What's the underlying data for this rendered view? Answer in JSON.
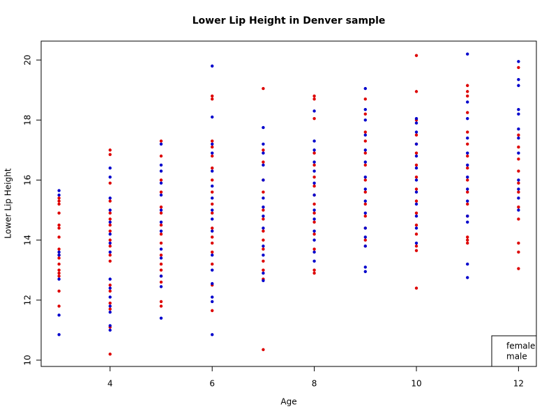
{
  "chart_data": {
    "type": "scatter",
    "title": "Lower Lip Height in Denver sample",
    "x_label": "Age",
    "y_label": "Lower Lip Height",
    "xlim": [
      2.65,
      12.35
    ],
    "ylim": [
      9.79,
      20.63
    ],
    "xticks": [
      4,
      6,
      8,
      10,
      12
    ],
    "yticks": [
      10,
      12,
      14,
      16,
      18,
      20
    ],
    "grid": false,
    "legend": "bottomright",
    "series": [
      {
        "name": "female",
        "color": "#dd0000",
        "x": [
          3,
          3,
          3,
          3,
          3,
          3,
          3,
          3,
          3,
          3,
          3,
          3,
          3,
          3,
          3,
          3,
          4,
          4,
          4,
          4,
          4,
          4,
          4,
          4,
          4,
          4,
          4,
          4,
          4,
          4,
          4,
          4,
          4,
          4,
          5,
          5,
          5,
          5,
          5,
          5,
          5,
          5,
          5,
          5,
          5,
          5,
          5,
          5,
          5,
          5,
          6,
          6,
          6,
          6,
          6,
          6,
          6,
          6,
          6,
          6,
          6,
          6,
          6,
          6,
          6,
          6,
          6,
          7,
          7,
          7,
          7,
          7,
          7,
          7,
          7,
          7,
          7,
          7,
          7,
          7,
          7,
          8,
          8,
          8,
          8,
          8,
          8,
          8,
          8,
          8,
          8,
          8,
          8,
          8,
          8,
          8,
          9,
          9,
          9,
          9,
          9,
          9,
          9,
          9,
          9,
          9,
          9,
          9,
          9,
          10,
          10,
          10,
          10,
          10,
          10,
          10,
          10,
          10,
          10,
          10,
          10,
          10,
          10,
          10,
          10,
          11,
          11,
          11,
          11,
          11,
          11,
          11,
          11,
          11,
          11,
          11,
          11,
          11,
          11,
          11,
          12,
          12,
          12,
          12,
          12,
          12,
          12,
          12,
          12,
          12,
          12,
          12
        ],
        "y": [
          15.4,
          15.3,
          15.2,
          14.9,
          14.5,
          14.4,
          14.1,
          13.7,
          13.5,
          13.4,
          13.2,
          13.0,
          12.9,
          12.8,
          12.3,
          11.8,
          17.0,
          16.85,
          15.9,
          15.3,
          14.9,
          14.7,
          14.5,
          14.3,
          14.0,
          13.8,
          13.5,
          13.3,
          12.5,
          12.3,
          11.9,
          11.7,
          11.1,
          10.2,
          17.3,
          16.8,
          16.0,
          15.6,
          15.1,
          14.9,
          14.5,
          14.2,
          13.9,
          13.5,
          13.2,
          13.0,
          12.8,
          12.6,
          11.95,
          11.8,
          18.8,
          18.7,
          17.3,
          17.1,
          16.8,
          16.4,
          16.0,
          15.6,
          15.2,
          14.9,
          14.4,
          14.1,
          13.9,
          13.6,
          13.2,
          12.5,
          11.65,
          19.05,
          17.0,
          16.6,
          16.0,
          15.6,
          15.0,
          14.7,
          14.3,
          14.0,
          13.7,
          13.3,
          13.0,
          12.7,
          10.35,
          18.8,
          18.7,
          18.05,
          16.9,
          16.5,
          16.1,
          15.8,
          15.5,
          15.2,
          14.9,
          14.6,
          14.2,
          13.7,
          13.0,
          12.9,
          18.7,
          18.2,
          17.6,
          17.3,
          16.9,
          16.5,
          16.0,
          15.6,
          15.2,
          14.8,
          14.4,
          14.0,
          13.8,
          20.15,
          18.95,
          18.0,
          17.5,
          17.2,
          16.9,
          16.5,
          16.1,
          15.7,
          15.3,
          14.9,
          14.5,
          14.2,
          13.8,
          13.65,
          12.4,
          19.15,
          18.95,
          18.8,
          18.25,
          17.6,
          17.2,
          16.8,
          16.4,
          16.0,
          15.6,
          15.2,
          14.8,
          14.1,
          14.0,
          13.9,
          19.75,
          17.5,
          17.1,
          16.7,
          16.3,
          15.9,
          15.6,
          15.1,
          14.7,
          13.9,
          13.6,
          13.05
        ]
      },
      {
        "name": "male",
        "color": "#0000cc",
        "x": [
          3,
          3,
          3,
          3,
          3,
          3,
          3,
          4,
          4,
          4,
          4,
          4,
          4,
          4,
          4,
          4,
          4,
          4,
          4,
          4,
          4,
          4,
          5,
          5,
          5,
          5,
          5,
          5,
          5,
          5,
          5,
          5,
          5,
          5,
          5,
          6,
          6,
          6,
          6,
          6,
          6,
          6,
          6,
          6,
          6,
          6,
          6,
          6,
          6,
          6,
          6,
          7,
          7,
          7,
          7,
          7,
          7,
          7,
          7,
          7,
          7,
          7,
          7,
          7,
          8,
          8,
          8,
          8,
          8,
          8,
          8,
          8,
          8,
          8,
          8,
          8,
          8,
          9,
          9,
          9,
          9,
          9,
          9,
          9,
          9,
          9,
          9,
          9,
          9,
          9,
          9,
          9,
          10,
          10,
          10,
          10,
          10,
          10,
          10,
          10,
          10,
          10,
          10,
          10,
          11,
          11,
          11,
          11,
          11,
          11,
          11,
          11,
          11,
          11,
          11,
          11,
          11,
          12,
          12,
          12,
          12,
          12,
          12,
          12,
          12,
          12,
          12,
          12,
          12
        ],
        "y": [
          15.65,
          15.5,
          13.6,
          13.5,
          12.7,
          11.5,
          10.85,
          16.4,
          16.1,
          15.4,
          15.0,
          14.6,
          14.2,
          13.9,
          13.6,
          12.7,
          12.4,
          12.1,
          11.8,
          11.6,
          11.15,
          11.0,
          17.2,
          16.5,
          16.3,
          15.9,
          15.5,
          15.0,
          14.6,
          14.3,
          13.7,
          13.4,
          12.8,
          12.45,
          11.4,
          19.8,
          18.1,
          17.2,
          16.9,
          16.3,
          15.8,
          15.4,
          15.0,
          14.7,
          14.3,
          13.5,
          13.0,
          12.55,
          12.1,
          11.95,
          10.85,
          17.75,
          17.2,
          16.9,
          16.5,
          16.0,
          15.4,
          15.1,
          14.8,
          14.4,
          13.8,
          13.5,
          12.9,
          12.65,
          18.3,
          17.3,
          17.0,
          16.6,
          16.3,
          15.9,
          15.5,
          15.0,
          14.7,
          14.3,
          14.0,
          13.6,
          13.3,
          19.05,
          18.35,
          18.0,
          17.5,
          17.0,
          16.6,
          16.1,
          15.7,
          15.3,
          14.9,
          14.4,
          14.1,
          13.8,
          13.1,
          12.95,
          18.05,
          17.9,
          17.6,
          17.2,
          16.8,
          16.4,
          16.0,
          15.6,
          15.2,
          14.8,
          14.4,
          13.9,
          20.2,
          18.6,
          18.05,
          17.4,
          16.9,
          16.5,
          16.1,
          15.7,
          15.3,
          14.8,
          14.6,
          13.2,
          12.75,
          19.95,
          19.35,
          19.15,
          18.35,
          18.2,
          17.7,
          17.4,
          16.9,
          16.0,
          15.7,
          15.4,
          15.0
        ]
      }
    ]
  }
}
